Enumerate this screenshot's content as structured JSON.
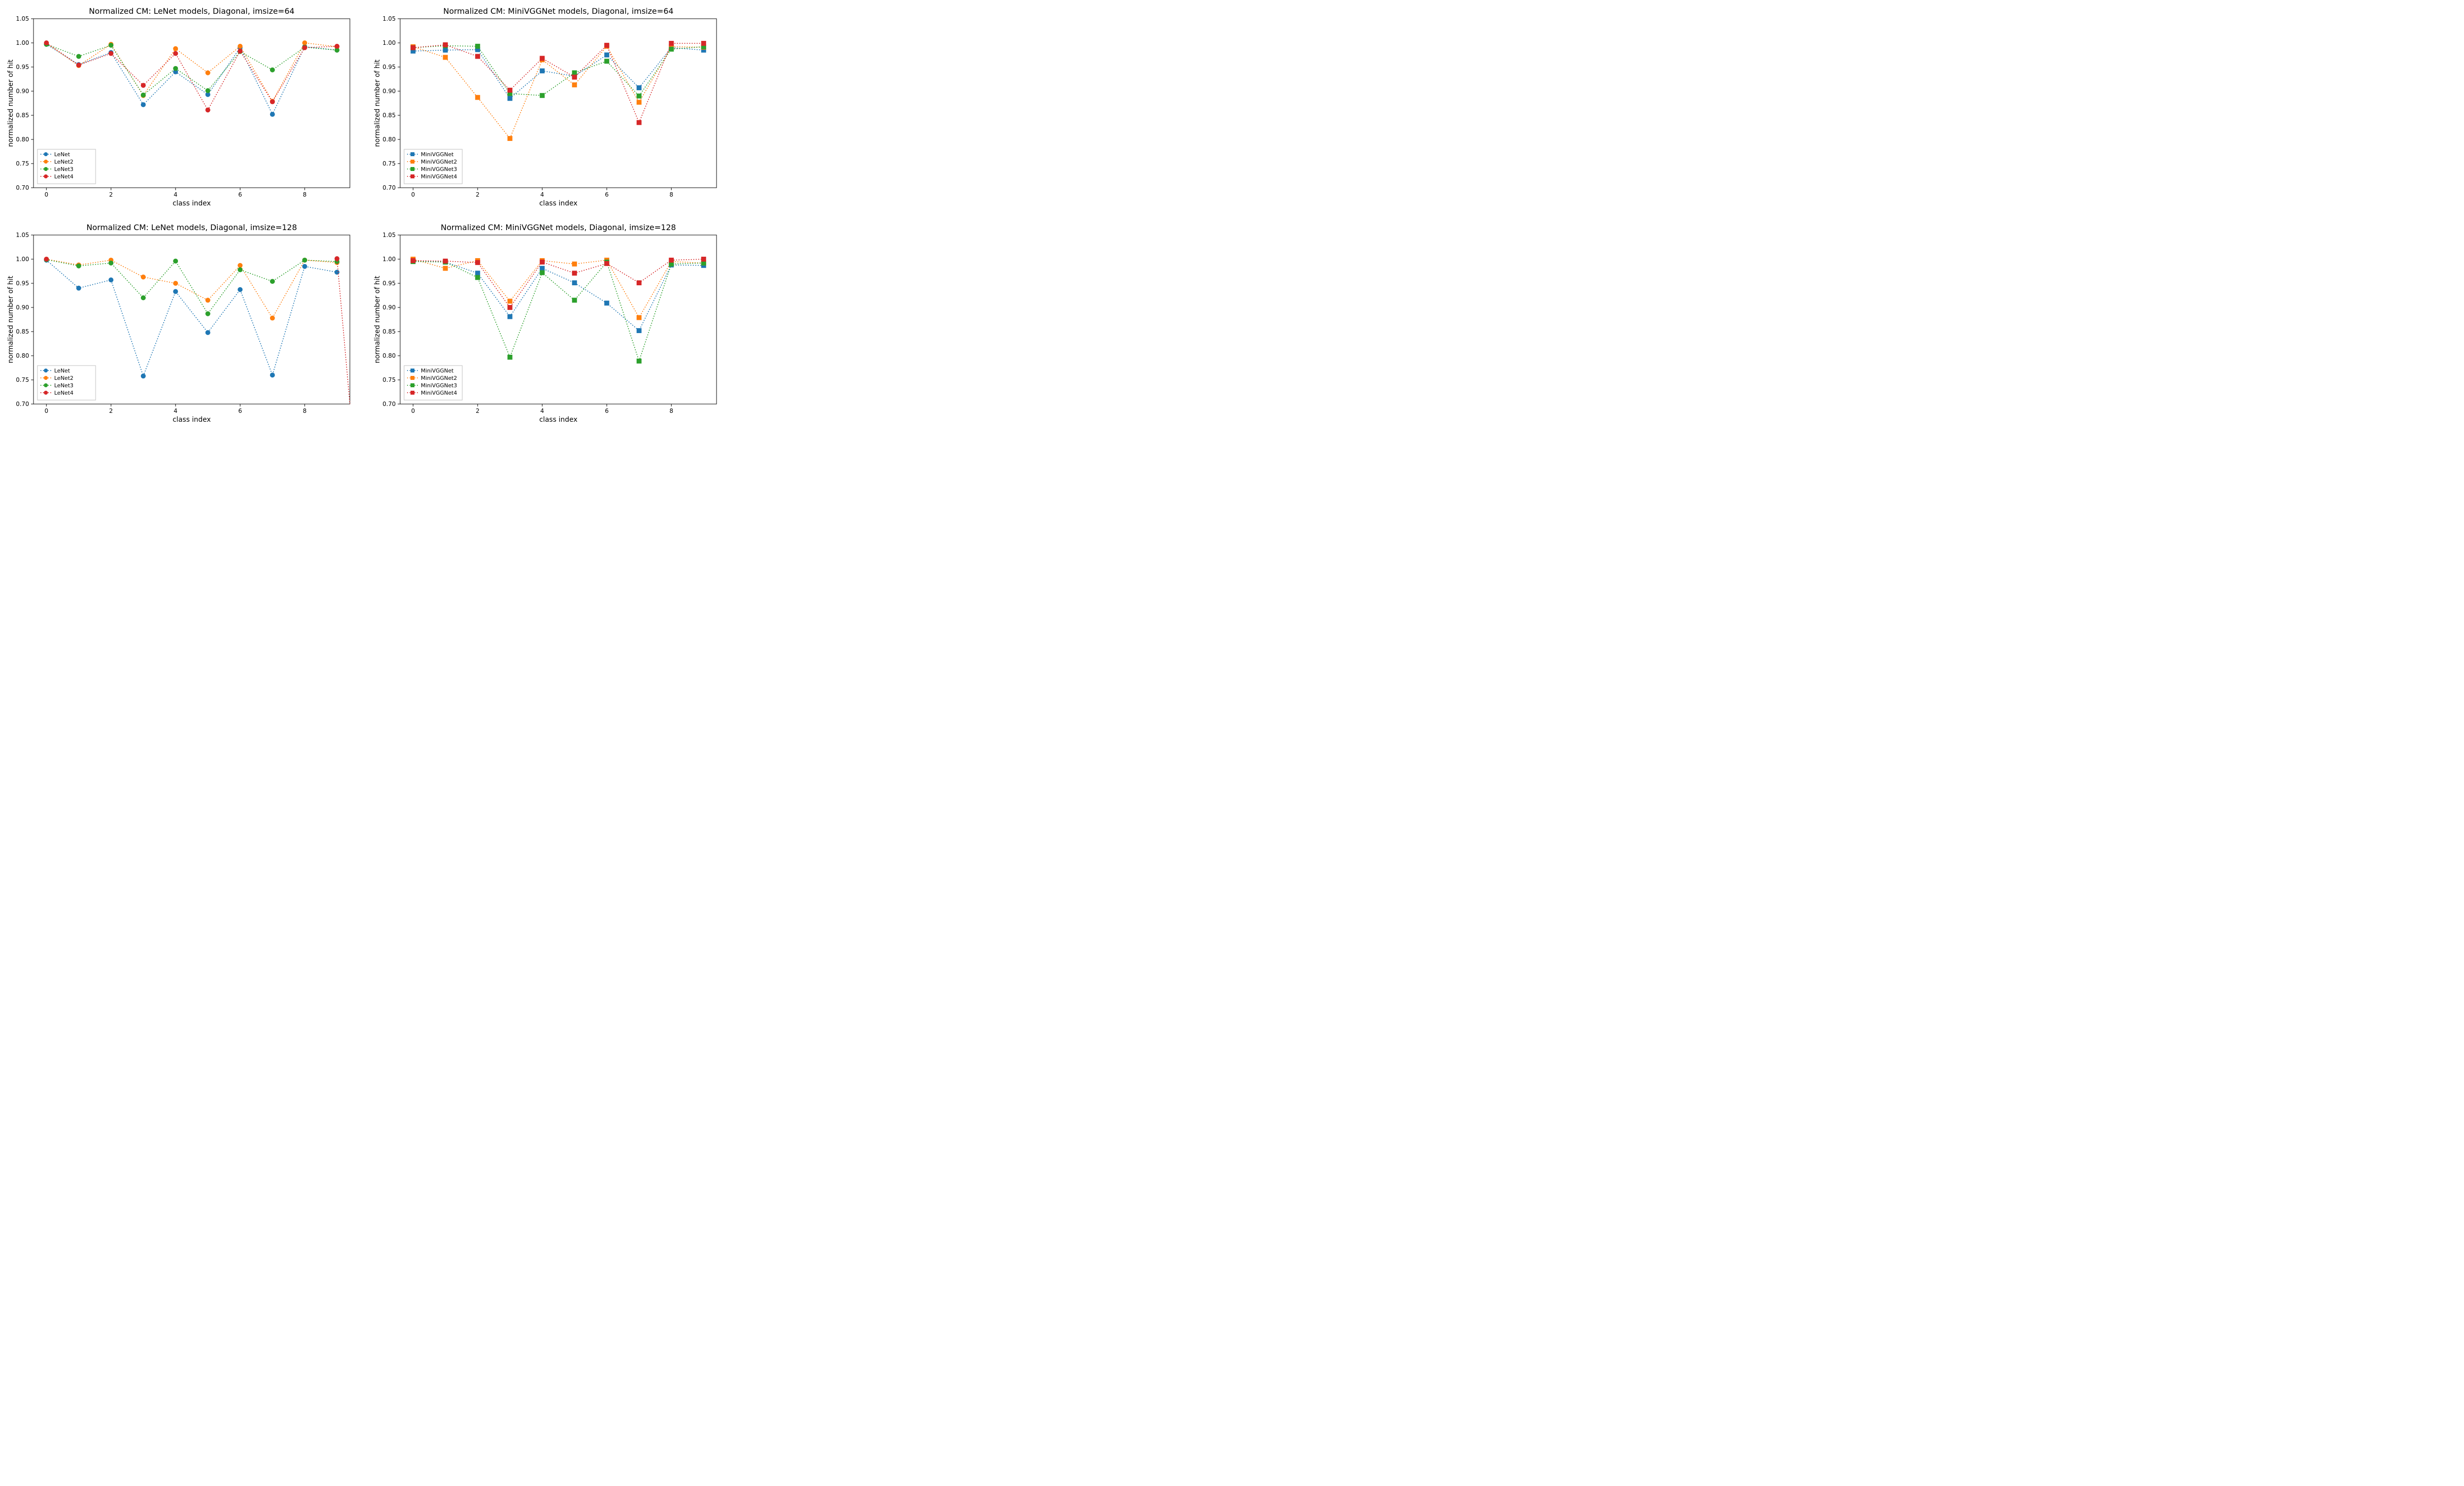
{
  "global": {
    "background_color": "#ffffff",
    "xlim": [
      -0.4,
      9.4
    ],
    "ylim": [
      0.7,
      1.05
    ],
    "xlabel": "class index",
    "ylabel": "normalized number of hit",
    "xtick_step": 2,
    "ytick_step": 0.05,
    "xticks": [
      0,
      2,
      4,
      6,
      8
    ],
    "yticks": [
      0.7,
      0.75,
      0.8,
      0.85,
      0.9,
      0.95,
      1.0,
      1.05
    ],
    "title_fontsize": 16,
    "label_fontsize": 14,
    "tick_fontsize": 12,
    "legend_fontsize": 11,
    "line_width": 1.6,
    "dash_pattern": "2 3",
    "marker_size": 5,
    "colors": {
      "s1": "#1f77b4",
      "s2": "#ff7f0e",
      "s3": "#2ca02c",
      "s4": "#d62728"
    }
  },
  "panels": [
    {
      "id": "lenet64",
      "title": "Normalized CM: LeNet models, Diagonal, imsize=64",
      "marker": "circle",
      "legend": [
        "LeNet",
        "LeNet2",
        "LeNet3",
        "LeNet4"
      ],
      "x": [
        0,
        1,
        2,
        3,
        4,
        5,
        6,
        7,
        8,
        9
      ],
      "series": [
        {
          "color": "s1",
          "y": [
            0.997,
            0.955,
            0.98,
            0.872,
            0.94,
            0.893,
            0.99,
            0.852,
            0.992,
            0.985
          ]
        },
        {
          "color": "s2",
          "y": [
            0.999,
            0.953,
            0.997,
            0.891,
            0.988,
            0.938,
            0.993,
            0.879,
            1.0,
            0.992
          ]
        },
        {
          "color": "s3",
          "y": [
            0.997,
            0.972,
            0.995,
            0.892,
            0.947,
            0.901,
            0.982,
            0.944,
            0.991,
            0.985
          ]
        },
        {
          "color": "s4",
          "y": [
            1.0,
            0.954,
            0.978,
            0.912,
            0.978,
            0.861,
            0.983,
            0.878,
            0.99,
            0.993
          ]
        }
      ]
    },
    {
      "id": "minivgg64",
      "title": "Normalized CM: MiniVGGNet models, Diagonal, imsize=64",
      "marker": "square",
      "legend": [
        "MiniVGGNet",
        "MiniVGGNet2",
        "MiniVGGNet3",
        "MiniVGGNet4"
      ],
      "x": [
        0,
        1,
        2,
        3,
        4,
        5,
        6,
        7,
        8,
        9
      ],
      "series": [
        {
          "color": "s1",
          "y": [
            0.983,
            0.985,
            0.986,
            0.885,
            0.942,
            0.931,
            0.975,
            0.907,
            0.99,
            0.985
          ]
        },
        {
          "color": "s2",
          "y": [
            0.992,
            0.97,
            0.887,
            0.802,
            0.965,
            0.913,
            0.993,
            0.877,
            0.992,
            0.991
          ]
        },
        {
          "color": "s3",
          "y": [
            0.99,
            0.994,
            0.993,
            0.895,
            0.891,
            0.938,
            0.962,
            0.89,
            0.987,
            0.992
          ]
        },
        {
          "color": "s4",
          "y": [
            0.99,
            0.996,
            0.972,
            0.902,
            0.968,
            0.929,
            0.995,
            0.835,
            0.999,
            0.999
          ]
        }
      ]
    },
    {
      "id": "lenet128",
      "title": "Normalized CM: LeNet models, Diagonal, imsize=128",
      "marker": "circle",
      "legend": [
        "LeNet",
        "LeNet2",
        "LeNet3",
        "LeNet4"
      ],
      "x": [
        0,
        1,
        2,
        3,
        4,
        5,
        6,
        7,
        8,
        9
      ],
      "series": [
        {
          "color": "s1",
          "y": [
            0.998,
            0.94,
            0.957,
            0.758,
            0.933,
            0.848,
            0.937,
            0.76,
            0.985,
            0.973
          ]
        },
        {
          "color": "s2",
          "y": [
            1.0,
            0.988,
            0.998,
            0.963,
            0.95,
            0.915,
            0.987,
            0.878,
            0.998,
            0.993
          ]
        },
        {
          "color": "s3",
          "y": [
            0.999,
            0.986,
            0.992,
            0.92,
            0.996,
            0.887,
            0.978,
            0.954,
            0.998,
            0.995
          ]
        },
        {
          "color": "s4",
          "y": [
            1.0,
            null,
            null,
            null,
            null,
            null,
            null,
            null,
            null,
            1.001
          ],
          "extra_segment": {
            "from": [
              9,
              1.001
            ],
            "to": [
              9.4,
              0.7
            ]
          }
        }
      ]
    },
    {
      "id": "minivgg128",
      "title": "Normalized CM: MiniVGGNet models, Diagonal, imsize=128",
      "marker": "square",
      "legend": [
        "MiniVGGNet",
        "MiniVGGNet2",
        "MiniVGGNet3",
        "MiniVGGNet4"
      ],
      "x": [
        0,
        1,
        2,
        3,
        4,
        5,
        6,
        7,
        8,
        9
      ],
      "series": [
        {
          "color": "s1",
          "y": [
            0.997,
            0.994,
            0.971,
            0.881,
            0.981,
            0.951,
            0.909,
            0.852,
            0.988,
            0.987
          ]
        },
        {
          "color": "s2",
          "y": [
            1.0,
            0.981,
            0.997,
            0.913,
            0.997,
            0.99,
            0.998,
            0.879,
            0.995,
            0.992
          ]
        },
        {
          "color": "s3",
          "y": [
            0.995,
            0.994,
            0.962,
            0.797,
            0.972,
            0.915,
            0.994,
            0.789,
            0.99,
            0.992
          ]
        },
        {
          "color": "s4",
          "y": [
            0.997,
            0.996,
            0.993,
            0.9,
            0.994,
            0.971,
            0.991,
            0.951,
            0.998,
            1.0
          ]
        }
      ]
    }
  ]
}
